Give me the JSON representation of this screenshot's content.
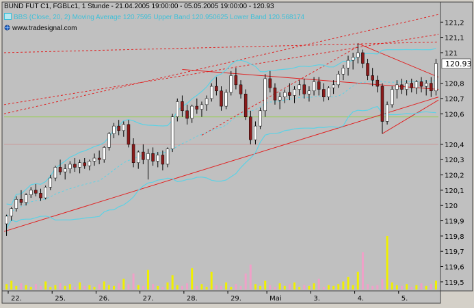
{
  "header": {
    "title": "BUND FUT C1, FGBLc1, 1 Stunde - 21.04.2005 19:00:00 - 05.05.2005 19:00:00 - 120.93",
    "indicator": "BBS (Close, 20, 2) Moving Average 120.7595 Upper Band 120.950625 Lower Band 120.568174",
    "site": "www.tradesignal.com"
  },
  "colors": {
    "plot_bg": "#c0c0c0",
    "bull_candle": "#ffffff",
    "bear_candle": "#8b1a1a",
    "bollinger": "#5ad2e6",
    "trendline": "#e02020",
    "volume_up": "#f0f000",
    "volume_down": "#f0a0c8"
  },
  "chart_data": {
    "type": "candlestick",
    "title": "BUND FUT C1, FGBLc1, 1 Stunde",
    "last_value": "120.93",
    "ylim": [
      119.45,
      121.3
    ],
    "yticks": [
      "121,2",
      "121,1",
      "121",
      "120,8",
      "120,7",
      "120,6",
      "120,4",
      "120,3",
      "120,2",
      "120,1",
      "120",
      "119,9",
      "119,8",
      "119,7",
      "119,6",
      "119,5"
    ],
    "xlabels": [
      "22.",
      "25.",
      "26.",
      "27.",
      "28.",
      "29.",
      "Mai",
      "3.",
      "4.",
      "5."
    ],
    "candles": [
      [
        119.88,
        119.94,
        119.8,
        119.93
      ],
      [
        119.93,
        119.99,
        119.9,
        119.98
      ],
      [
        119.98,
        120.06,
        119.96,
        120.04
      ],
      [
        120.04,
        120.1,
        120.0,
        120.02
      ],
      [
        120.02,
        120.08,
        120.0,
        120.07
      ],
      [
        120.07,
        120.12,
        120.05,
        120.1
      ],
      [
        120.1,
        120.14,
        120.06,
        120.08
      ],
      [
        120.08,
        120.11,
        120.03,
        120.05
      ],
      [
        120.05,
        120.13,
        120.04,
        120.12
      ],
      [
        120.12,
        120.2,
        120.1,
        120.18
      ],
      [
        120.18,
        120.26,
        120.16,
        120.25
      ],
      [
        120.25,
        120.3,
        120.2,
        120.22
      ],
      [
        120.22,
        120.27,
        120.17,
        120.24
      ],
      [
        120.24,
        120.29,
        120.21,
        120.27
      ],
      [
        120.27,
        120.31,
        120.22,
        120.25
      ],
      [
        120.25,
        120.3,
        120.21,
        120.28
      ],
      [
        120.28,
        120.31,
        120.24,
        120.26
      ],
      [
        120.26,
        120.3,
        120.23,
        120.29
      ],
      [
        120.29,
        120.34,
        120.26,
        120.31
      ],
      [
        120.31,
        120.36,
        120.27,
        120.3
      ],
      [
        120.3,
        120.39,
        120.28,
        120.38
      ],
      [
        120.38,
        120.48,
        120.36,
        120.47
      ],
      [
        120.47,
        120.54,
        120.44,
        120.52
      ],
      [
        120.52,
        120.56,
        120.46,
        120.49
      ],
      [
        120.49,
        120.55,
        120.45,
        120.53
      ],
      [
        120.53,
        120.56,
        120.38,
        120.4
      ],
      [
        120.4,
        120.44,
        120.25,
        120.28
      ],
      [
        120.28,
        120.36,
        120.24,
        120.35
      ],
      [
        120.35,
        120.4,
        120.27,
        120.3
      ],
      [
        120.3,
        120.37,
        120.17,
        120.34
      ],
      [
        120.34,
        120.38,
        120.26,
        120.29
      ],
      [
        120.29,
        120.35,
        120.25,
        120.33
      ],
      [
        120.33,
        120.36,
        120.23,
        120.27
      ],
      [
        120.27,
        120.38,
        120.25,
        120.37
      ],
      [
        120.37,
        120.6,
        120.35,
        120.58
      ],
      [
        120.58,
        120.7,
        120.55,
        120.68
      ],
      [
        120.68,
        120.72,
        120.58,
        120.62
      ],
      [
        120.62,
        120.66,
        120.53,
        120.57
      ],
      [
        120.57,
        120.66,
        120.54,
        120.65
      ],
      [
        120.65,
        120.7,
        120.6,
        120.63
      ],
      [
        120.63,
        120.68,
        120.58,
        120.66
      ],
      [
        120.66,
        120.72,
        120.62,
        120.7
      ],
      [
        120.7,
        120.8,
        120.68,
        120.78
      ],
      [
        120.78,
        120.84,
        120.72,
        120.75
      ],
      [
        120.75,
        120.78,
        120.62,
        120.65
      ],
      [
        120.65,
        120.76,
        120.63,
        120.74
      ],
      [
        120.74,
        120.88,
        120.72,
        120.85
      ],
      [
        120.85,
        120.9,
        120.76,
        120.79
      ],
      [
        120.79,
        120.82,
        120.7,
        120.73
      ],
      [
        120.73,
        120.76,
        120.56,
        120.58
      ],
      [
        120.58,
        120.62,
        120.4,
        120.43
      ],
      [
        120.43,
        120.55,
        120.4,
        120.52
      ],
      [
        120.52,
        120.64,
        120.5,
        120.62
      ],
      [
        120.62,
        120.86,
        120.58,
        120.83
      ],
      [
        120.83,
        120.88,
        120.74,
        120.77
      ],
      [
        120.77,
        120.8,
        120.66,
        120.69
      ],
      [
        120.69,
        120.74,
        120.63,
        120.71
      ],
      [
        120.71,
        120.76,
        120.67,
        120.74
      ],
      [
        120.74,
        120.8,
        120.69,
        120.72
      ],
      [
        120.72,
        120.78,
        120.67,
        120.76
      ],
      [
        120.76,
        120.82,
        120.72,
        120.79
      ],
      [
        120.79,
        120.83,
        120.7,
        120.73
      ],
      [
        120.73,
        120.78,
        120.68,
        120.75
      ],
      [
        120.75,
        120.84,
        120.72,
        120.81
      ],
      [
        120.81,
        120.84,
        120.72,
        120.76
      ],
      [
        120.76,
        120.8,
        120.68,
        120.71
      ],
      [
        120.71,
        120.78,
        120.69,
        120.77
      ],
      [
        120.77,
        120.82,
        120.73,
        120.79
      ],
      [
        120.79,
        120.88,
        120.77,
        120.86
      ],
      [
        120.86,
        120.92,
        120.82,
        120.9
      ],
      [
        120.9,
        120.98,
        120.85,
        120.95
      ],
      [
        120.95,
        121.0,
        120.89,
        120.97
      ],
      [
        120.97,
        121.06,
        120.93,
        121.0
      ],
      [
        121.0,
        121.02,
        120.9,
        120.93
      ],
      [
        120.93,
        120.96,
        120.82,
        120.85
      ],
      [
        120.85,
        120.9,
        120.78,
        120.82
      ],
      [
        120.82,
        120.85,
        120.74,
        120.78
      ],
      [
        120.78,
        120.8,
        120.47,
        120.55
      ],
      [
        120.55,
        120.68,
        120.53,
        120.66
      ],
      [
        120.66,
        120.78,
        120.64,
        120.76
      ],
      [
        120.76,
        120.82,
        120.7,
        120.79
      ],
      [
        120.79,
        120.83,
        120.73,
        120.76
      ],
      [
        120.76,
        120.82,
        120.72,
        120.8
      ],
      [
        120.8,
        120.83,
        120.74,
        120.77
      ],
      [
        120.77,
        120.82,
        120.73,
        120.81
      ],
      [
        120.81,
        120.84,
        120.74,
        120.78
      ],
      [
        120.78,
        120.82,
        120.72,
        120.8
      ],
      [
        120.8,
        120.84,
        120.71,
        120.75
      ],
      [
        120.75,
        120.96,
        120.72,
        120.93
      ]
    ],
    "volume": [
      6,
      10,
      4,
      7,
      5,
      3,
      6,
      4,
      9,
      3,
      5,
      7,
      4,
      6,
      3,
      8,
      4,
      5,
      3,
      6,
      9,
      5,
      4,
      7,
      12,
      6,
      18,
      5,
      4,
      22,
      6,
      4,
      3,
      8,
      16,
      5,
      4,
      7,
      24,
      4,
      6,
      3,
      20,
      5,
      4,
      8,
      3,
      6,
      4,
      18,
      28,
      6,
      4,
      10,
      5,
      3,
      7,
      4,
      6,
      8,
      3,
      5,
      4,
      7,
      12,
      3,
      5,
      4,
      6,
      9,
      14,
      5,
      20,
      42,
      6,
      4,
      5,
      12,
      60,
      8,
      5,
      4,
      6,
      3,
      5,
      7,
      4,
      6,
      10
    ]
  }
}
